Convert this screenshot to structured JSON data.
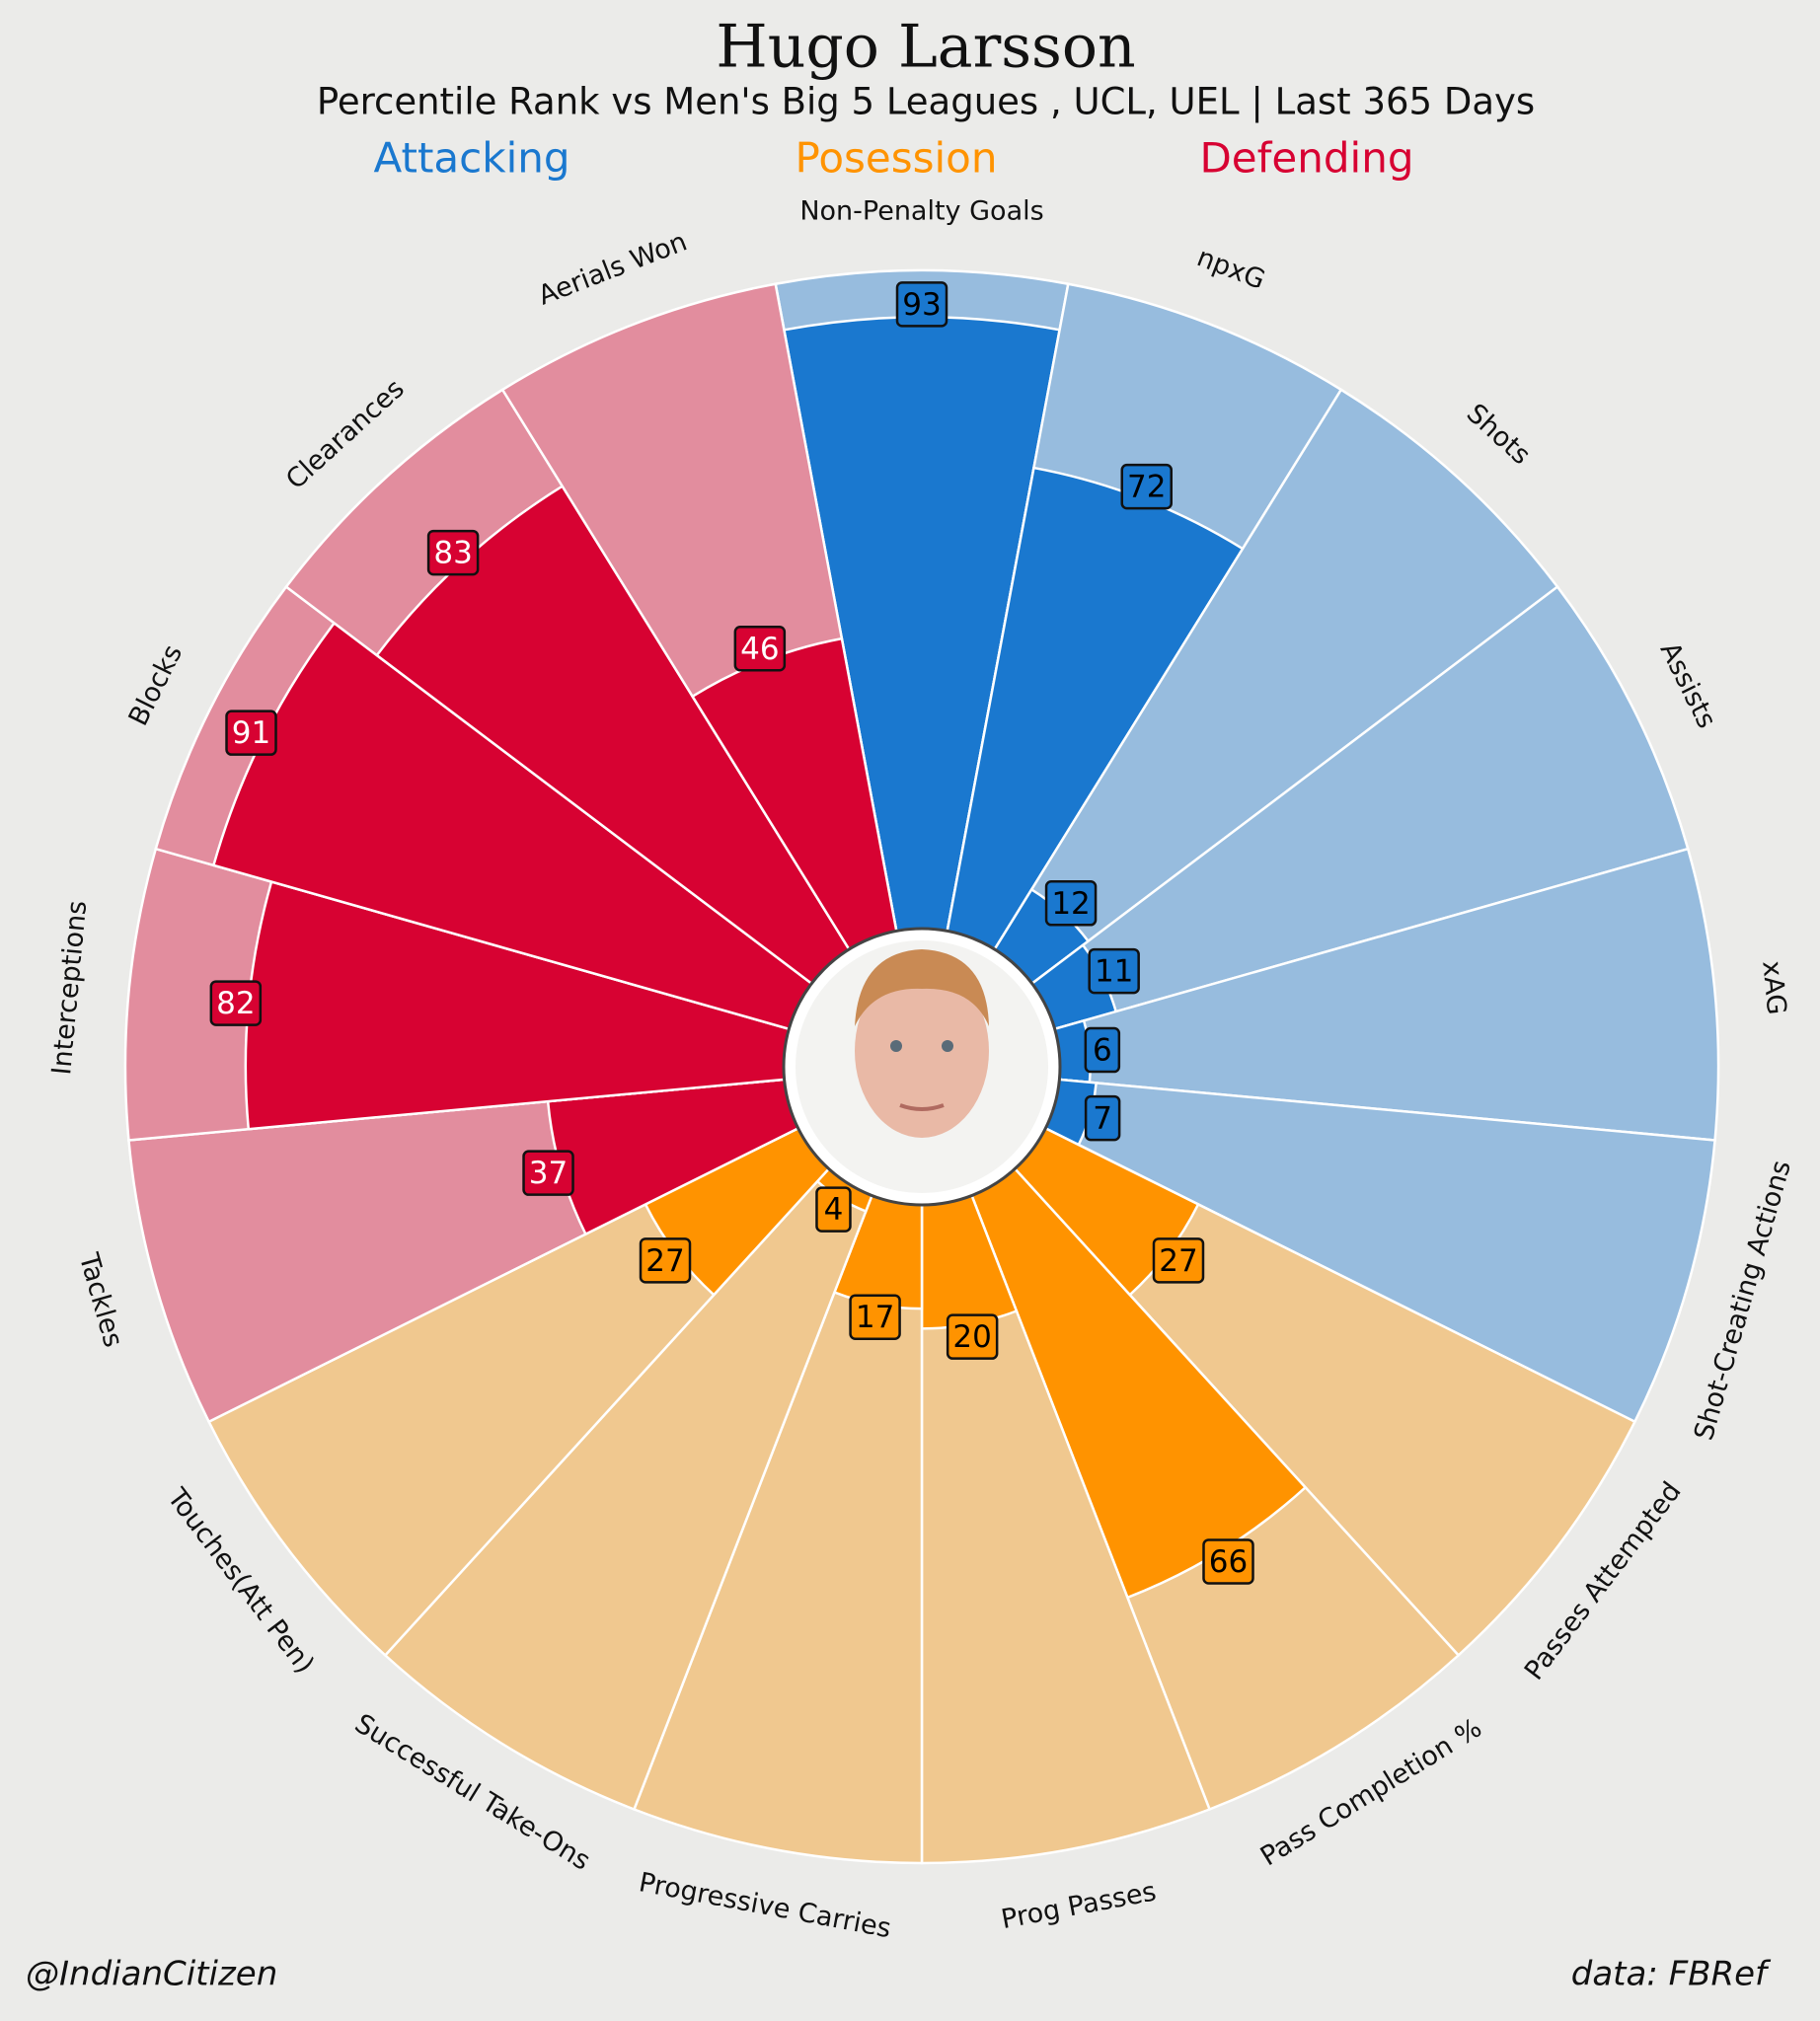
{
  "chart_data": {
    "type": "pizza",
    "title": "Hugo Larsson",
    "subtitle": "Percentile Rank vs Men's Big 5 Leagues , UCL, UEL | Last 365 Days",
    "ylim": [
      0,
      100
    ],
    "series": [
      {
        "name": "Attacking",
        "color": "#1a78cf",
        "background_color": "#97bcde",
        "label_color": "#000000",
        "categories": [
          "Non-Penalty Goals",
          "npxG",
          "Shots",
          "Assists",
          "xAG",
          "Shot-Creating Actions"
        ],
        "values": [
          93,
          72,
          12,
          11,
          6,
          7
        ]
      },
      {
        "name": "Posession",
        "color": "#ff9300",
        "background_color": "#f0c88f",
        "label_color": "#000000",
        "categories": [
          "Passes Attempted",
          "Pass Completion %",
          "Prog Passes",
          "Progressive Carries",
          "Successful Take-Ons",
          "Touches(Att Pen)"
        ],
        "values": [
          27,
          66,
          20,
          17,
          4,
          27
        ]
      },
      {
        "name": "Defending",
        "color": "#d70232",
        "background_color": "#e28d9e",
        "label_color": "#ffffff",
        "categories": [
          "Tackles",
          "Interceptions",
          "Blocks",
          "Clearances",
          "Aerials Won"
        ],
        "values": [
          37,
          82,
          91,
          83,
          46
        ]
      }
    ],
    "credit": "@IndianCitizen",
    "source": "data: FBRef"
  }
}
